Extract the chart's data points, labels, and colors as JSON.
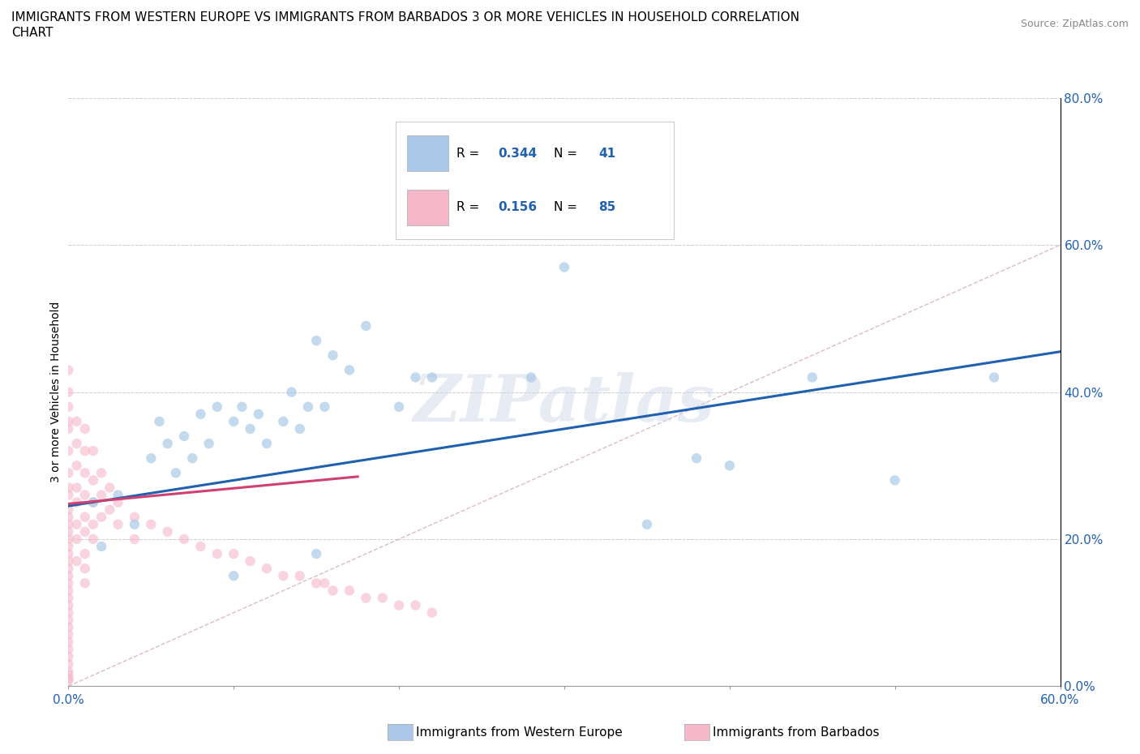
{
  "title_line1": "IMMIGRANTS FROM WESTERN EUROPE VS IMMIGRANTS FROM BARBADOS 3 OR MORE VEHICLES IN HOUSEHOLD CORRELATION",
  "title_line2": "CHART",
  "source": "Source: ZipAtlas.com",
  "ylabel": "3 or more Vehicles in Household",
  "ylabel_right_ticks": [
    "0.0%",
    "20.0%",
    "40.0%",
    "60.0%",
    "80.0%"
  ],
  "ylabel_right_vals": [
    0.0,
    0.2,
    0.4,
    0.6,
    0.8
  ],
  "xlim": [
    0.0,
    0.6
  ],
  "ylim": [
    0.0,
    0.8
  ],
  "R_western": "0.344",
  "N_western": "41",
  "R_barbados": "0.156",
  "N_barbados": "85",
  "color_western": "#aac9e8",
  "color_barbados": "#f5b8c8",
  "color_western_line": "#2060b0",
  "color_barbados_line": "#d04070",
  "color_diagonal": "#d0a0a8",
  "watermark": "ZIPatlas",
  "western_x": [
    0.015,
    0.02,
    0.03,
    0.04,
    0.05,
    0.055,
    0.06,
    0.065,
    0.07,
    0.075,
    0.08,
    0.085,
    0.09,
    0.1,
    0.105,
    0.11,
    0.115,
    0.12,
    0.13,
    0.135,
    0.14,
    0.145,
    0.15,
    0.155,
    0.16,
    0.17,
    0.18,
    0.2,
    0.21,
    0.22,
    0.27,
    0.28,
    0.3,
    0.35,
    0.38,
    0.4,
    0.45,
    0.5,
    0.56,
    0.1,
    0.15
  ],
  "western_y": [
    0.25,
    0.19,
    0.26,
    0.22,
    0.31,
    0.36,
    0.33,
    0.29,
    0.34,
    0.31,
    0.37,
    0.33,
    0.38,
    0.36,
    0.38,
    0.35,
    0.37,
    0.33,
    0.36,
    0.4,
    0.35,
    0.38,
    0.47,
    0.38,
    0.45,
    0.43,
    0.49,
    0.38,
    0.42,
    0.42,
    0.65,
    0.42,
    0.57,
    0.22,
    0.31,
    0.3,
    0.42,
    0.28,
    0.42,
    0.15,
    0.18
  ],
  "barbados_x": [
    0.0,
    0.0,
    0.0,
    0.0,
    0.0,
    0.0,
    0.0,
    0.0,
    0.0,
    0.0,
    0.0,
    0.0,
    0.0,
    0.0,
    0.0,
    0.0,
    0.0,
    0.0,
    0.0,
    0.0,
    0.0,
    0.0,
    0.0,
    0.0,
    0.0,
    0.0,
    0.0,
    0.0,
    0.0,
    0.0,
    0.0,
    0.0,
    0.0,
    0.0,
    0.0,
    0.005,
    0.005,
    0.005,
    0.005,
    0.005,
    0.005,
    0.005,
    0.005,
    0.01,
    0.01,
    0.01,
    0.01,
    0.01,
    0.01,
    0.01,
    0.01,
    0.01,
    0.015,
    0.015,
    0.015,
    0.015,
    0.015,
    0.02,
    0.02,
    0.02,
    0.025,
    0.025,
    0.03,
    0.03,
    0.04,
    0.04,
    0.05,
    0.06,
    0.07,
    0.08,
    0.09,
    0.1,
    0.11,
    0.12,
    0.13,
    0.14,
    0.15,
    0.155,
    0.16,
    0.17,
    0.18,
    0.19,
    0.2,
    0.21,
    0.22
  ],
  "barbados_y": [
    0.27,
    0.24,
    0.22,
    0.2,
    0.18,
    0.16,
    0.14,
    0.12,
    0.1,
    0.09,
    0.08,
    0.07,
    0.06,
    0.05,
    0.04,
    0.03,
    0.02,
    0.015,
    0.01,
    0.008,
    0.38,
    0.35,
    0.32,
    0.29,
    0.26,
    0.23,
    0.21,
    0.19,
    0.17,
    0.15,
    0.13,
    0.11,
    0.43,
    0.4,
    0.36,
    0.36,
    0.33,
    0.3,
    0.27,
    0.25,
    0.22,
    0.2,
    0.17,
    0.35,
    0.32,
    0.29,
    0.26,
    0.23,
    0.21,
    0.18,
    0.16,
    0.14,
    0.32,
    0.28,
    0.25,
    0.22,
    0.2,
    0.29,
    0.26,
    0.23,
    0.27,
    0.24,
    0.25,
    0.22,
    0.23,
    0.2,
    0.22,
    0.21,
    0.2,
    0.19,
    0.18,
    0.18,
    0.17,
    0.16,
    0.15,
    0.15,
    0.14,
    0.14,
    0.13,
    0.13,
    0.12,
    0.12,
    0.11,
    0.11,
    0.1
  ],
  "western_line_x": [
    0.0,
    0.6
  ],
  "western_line_y": [
    0.245,
    0.455
  ],
  "barbados_line_x": [
    0.0,
    0.175
  ],
  "barbados_line_y": [
    0.248,
    0.285
  ]
}
